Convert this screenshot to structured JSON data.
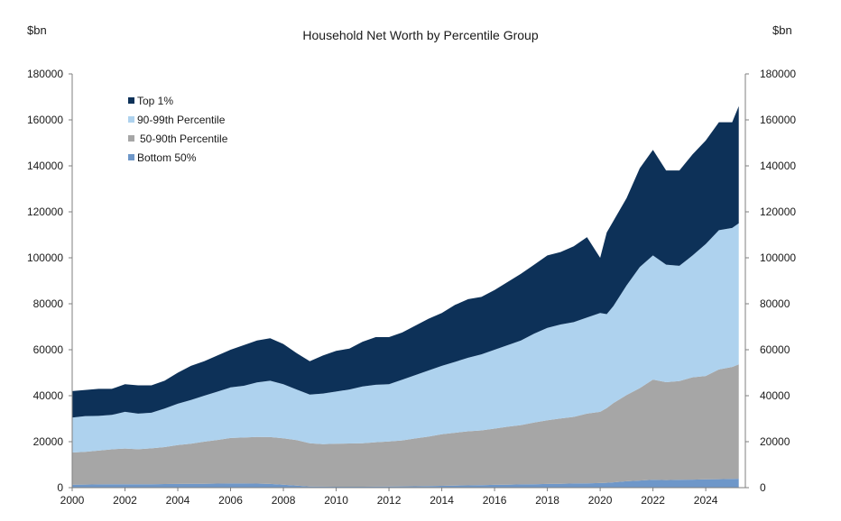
{
  "chart_data": {
    "type": "area",
    "stacked": true,
    "title": "Household Net Worth by Percentile Group",
    "y_unit_left": "$bn",
    "y_unit_right": "$bn",
    "ylim": [
      0,
      180000
    ],
    "xlim": [
      2000,
      2025.5
    ],
    "y_ticks": [
      0,
      20000,
      40000,
      60000,
      80000,
      100000,
      120000,
      140000,
      160000,
      180000
    ],
    "x_ticks": [
      2000,
      2002,
      2004,
      2006,
      2008,
      2010,
      2012,
      2014,
      2016,
      2018,
      2020,
      2022,
      2024
    ],
    "legend_position": "top-left",
    "grid": false,
    "x": [
      2000,
      2000.5,
      2001,
      2001.5,
      2002,
      2002.5,
      2003,
      2003.5,
      2004,
      2004.5,
      2005,
      2005.5,
      2006,
      2006.5,
      2007,
      2007.5,
      2008,
      2008.5,
      2009,
      2009.5,
      2010,
      2010.5,
      2011,
      2011.5,
      2012,
      2012.5,
      2013,
      2013.5,
      2014,
      2014.5,
      2015,
      2015.5,
      2016,
      2016.5,
      2017,
      2017.5,
      2018,
      2018.5,
      2019,
      2019.5,
      2020,
      2020.25,
      2020.5,
      2021,
      2021.5,
      2022,
      2022.5,
      2023,
      2023.5,
      2024,
      2024.5,
      2025,
      2025.25
    ],
    "series": [
      {
        "name": "Bottom 50%",
        "color": "#6e97c9",
        "values": [
          1300,
          1350,
          1400,
          1450,
          1500,
          1500,
          1500,
          1550,
          1600,
          1650,
          1700,
          1750,
          1800,
          1800,
          1750,
          1600,
          1300,
          900,
          500,
          450,
          400,
          400,
          400,
          450,
          500,
          550,
          600,
          700,
          800,
          900,
          1000,
          1100,
          1200,
          1300,
          1400,
          1500,
          1600,
          1700,
          1800,
          1900,
          2000,
          2100,
          2300,
          2800,
          3100,
          3400,
          3300,
          3400,
          3500,
          3600,
          3700,
          3800,
          3900
        ]
      },
      {
        "name": "50-90th Percentile",
        "color": "#a6a6a6",
        "values": [
          14000,
          14200,
          14700,
          15200,
          15500,
          15200,
          15600,
          16100,
          16900,
          17500,
          18300,
          19000,
          19800,
          20000,
          20300,
          20400,
          20200,
          19800,
          18800,
          18500,
          18700,
          18800,
          18900,
          19300,
          19600,
          20000,
          20800,
          21500,
          22400,
          23000,
          23500,
          23800,
          24500,
          25200,
          25800,
          26800,
          27700,
          28400,
          29000,
          30300,
          31000,
          32500,
          34500,
          37500,
          40200,
          43600,
          42600,
          43000,
          44500,
          45000,
          47700,
          48700,
          49700
        ]
      },
      {
        "name": "90-99th Percentile",
        "color": "#aed2ee",
        "values": [
          15200,
          15600,
          15100,
          15000,
          16000,
          15500,
          15500,
          16800,
          18000,
          19000,
          20000,
          21000,
          22000,
          22500,
          23700,
          24500,
          23500,
          22000,
          21200,
          22000,
          22700,
          23500,
          24700,
          25000,
          24900,
          26400,
          27600,
          28800,
          29800,
          30800,
          32000,
          33100,
          34300,
          35500,
          36800,
          38700,
          40200,
          40900,
          41200,
          41800,
          43000,
          40900,
          42200,
          47700,
          52700,
          54000,
          51100,
          50100,
          53000,
          57400,
          60600,
          60500,
          61400
        ]
      },
      {
        "name": "Top 1%",
        "color": "#0d3158",
        "values": [
          11500,
          11350,
          11800,
          11350,
          12000,
          12300,
          11900,
          12050,
          13500,
          14850,
          15000,
          15750,
          16400,
          17700,
          18250,
          18500,
          17500,
          15800,
          14500,
          16550,
          17700,
          17800,
          19500,
          20750,
          20500,
          20550,
          21500,
          22500,
          23000,
          24800,
          25500,
          25000,
          26000,
          27500,
          29000,
          30000,
          31500,
          31500,
          33000,
          35000,
          24000,
          35500,
          37000,
          38000,
          43000,
          46000,
          41000,
          41500,
          44000,
          45000,
          47000,
          46000,
          51000
        ]
      }
    ],
    "legend_order": [
      "Top 1%",
      "90-99th Percentile",
      "50-90th Percentile",
      "Bottom 50%"
    ]
  }
}
